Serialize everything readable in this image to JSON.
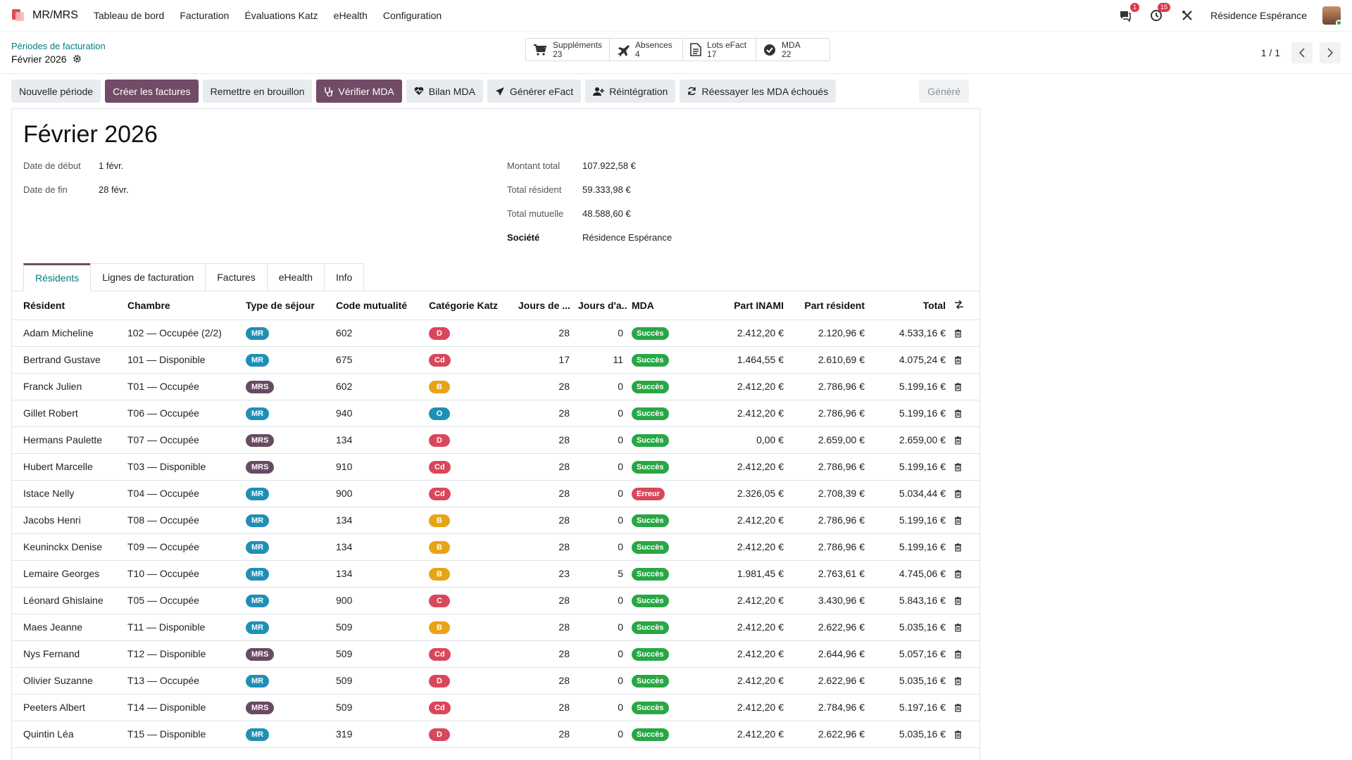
{
  "app": {
    "name": "MR/MRS"
  },
  "menu": [
    "Tableau de bord",
    "Facturation",
    "Évaluations Katz",
    "eHealth",
    "Configuration"
  ],
  "nav": {
    "messages_count": "1",
    "activities_count": "15",
    "company": "Résidence Espérance"
  },
  "breadcrumb": {
    "parent": "Périodes de facturation",
    "current": "Février 2026"
  },
  "stats": [
    {
      "label": "Suppléments",
      "value": "23",
      "icon": "cart-icon"
    },
    {
      "label": "Absences",
      "value": "4",
      "icon": "plane-icon"
    },
    {
      "label": "Lots eFact",
      "value": "17",
      "icon": "document-icon"
    },
    {
      "label": "MDA",
      "value": "22",
      "icon": "check-circle-icon"
    }
  ],
  "pager": {
    "value": "1 / 1"
  },
  "actions": {
    "new_period": "Nouvelle période",
    "create_invoices": "Créer les factures",
    "reset_draft": "Remettre en brouillon",
    "verify_mda": "Vérifier MDA",
    "mda_report": "Bilan MDA",
    "generate_efact": "Générer eFact",
    "reintegration": "Réintégration",
    "retry_mda": "Réessayer les MDA échoués",
    "status": "Généré"
  },
  "record": {
    "title": "Février 2026",
    "start_label": "Date de début",
    "start_value": "1 févr.",
    "end_label": "Date de fin",
    "end_value": "28 févr.",
    "total_label": "Montant total",
    "total_value": "107.922,58 €",
    "resident_label": "Total résident",
    "resident_value": "59.333,98 €",
    "mutual_label": "Total mutuelle",
    "mutual_value": "48.588,60 €",
    "company_label": "Société",
    "company_value": "Résidence Espérance"
  },
  "tabs": [
    "Résidents",
    "Lignes de facturation",
    "Factures",
    "eHealth",
    "Info"
  ],
  "columns": {
    "resident": "Résident",
    "room": "Chambre",
    "stay": "Type de séjour",
    "mutual": "Code mutualité",
    "katz": "Catégorie Katz",
    "days": "Jours de ...",
    "absence": "Jours d'a...",
    "mda": "MDA",
    "inami": "Part INAMI",
    "part_res": "Part résident",
    "total": "Total"
  },
  "colors": {
    "D": "#d9475b",
    "Cd": "#d9475b",
    "B": "#e8a317",
    "O": "#1f8fb5",
    "C": "#d9475b",
    "success": "#28a745",
    "error": "#d9475b",
    "accent": "#714b67",
    "link": "#017e84"
  },
  "rows": [
    {
      "name": "Adam Micheline",
      "room": "102 — Occupée (2/2)",
      "stay": "MR",
      "mutual": "602",
      "katz": "D",
      "days": "28",
      "abs": "0",
      "mda": "Succès",
      "mda_ok": true,
      "inami": "2.412,20 €",
      "res": "2.120,96 €",
      "total": "4.533,16 €"
    },
    {
      "name": "Bertrand Gustave",
      "room": "101 — Disponible",
      "stay": "MR",
      "mutual": "675",
      "katz": "Cd",
      "days": "17",
      "abs": "11",
      "mda": "Succès",
      "mda_ok": true,
      "inami": "1.464,55 €",
      "res": "2.610,69 €",
      "total": "4.075,24 €"
    },
    {
      "name": "Franck Julien",
      "room": "T01 — Occupée",
      "stay": "MRS",
      "mutual": "602",
      "katz": "B",
      "days": "28",
      "abs": "0",
      "mda": "Succès",
      "mda_ok": true,
      "inami": "2.412,20 €",
      "res": "2.786,96 €",
      "total": "5.199,16 €"
    },
    {
      "name": "Gillet Robert",
      "room": "T06 — Occupée",
      "stay": "MR",
      "mutual": "940",
      "katz": "O",
      "days": "28",
      "abs": "0",
      "mda": "Succès",
      "mda_ok": true,
      "inami": "2.412,20 €",
      "res": "2.786,96 €",
      "total": "5.199,16 €"
    },
    {
      "name": "Hermans Paulette",
      "room": "T07 — Occupée",
      "stay": "MRS",
      "mutual": "134",
      "katz": "D",
      "days": "28",
      "abs": "0",
      "mda": "Succès",
      "mda_ok": true,
      "inami": "0,00 €",
      "res": "2.659,00 €",
      "total": "2.659,00 €"
    },
    {
      "name": "Hubert Marcelle",
      "room": "T03 — Disponible",
      "stay": "MRS",
      "mutual": "910",
      "katz": "Cd",
      "days": "28",
      "abs": "0",
      "mda": "Succès",
      "mda_ok": true,
      "inami": "2.412,20 €",
      "res": "2.786,96 €",
      "total": "5.199,16 €"
    },
    {
      "name": "Istace Nelly",
      "room": "T04 — Occupée",
      "stay": "MR",
      "mutual": "900",
      "katz": "Cd",
      "days": "28",
      "abs": "0",
      "mda": "Erreur",
      "mda_ok": false,
      "inami": "2.326,05 €",
      "res": "2.708,39 €",
      "total": "5.034,44 €"
    },
    {
      "name": "Jacobs Henri",
      "room": "T08 — Occupée",
      "stay": "MR",
      "mutual": "134",
      "katz": "B",
      "days": "28",
      "abs": "0",
      "mda": "Succès",
      "mda_ok": true,
      "inami": "2.412,20 €",
      "res": "2.786,96 €",
      "total": "5.199,16 €"
    },
    {
      "name": "Keuninckx Denise",
      "room": "T09 — Occupée",
      "stay": "MR",
      "mutual": "134",
      "katz": "B",
      "days": "28",
      "abs": "0",
      "mda": "Succès",
      "mda_ok": true,
      "inami": "2.412,20 €",
      "res": "2.786,96 €",
      "total": "5.199,16 €"
    },
    {
      "name": "Lemaire Georges",
      "room": "T10 — Occupée",
      "stay": "MR",
      "mutual": "134",
      "katz": "B",
      "days": "23",
      "abs": "5",
      "mda": "Succès",
      "mda_ok": true,
      "inami": "1.981,45 €",
      "res": "2.763,61 €",
      "total": "4.745,06 €"
    },
    {
      "name": "Léonard Ghislaine",
      "room": "T05 — Occupée",
      "stay": "MR",
      "mutual": "900",
      "katz": "C",
      "days": "28",
      "abs": "0",
      "mda": "Succès",
      "mda_ok": true,
      "inami": "2.412,20 €",
      "res": "3.430,96 €",
      "total": "5.843,16 €"
    },
    {
      "name": "Maes Jeanne",
      "room": "T11 — Disponible",
      "stay": "MR",
      "mutual": "509",
      "katz": "B",
      "days": "28",
      "abs": "0",
      "mda": "Succès",
      "mda_ok": true,
      "inami": "2.412,20 €",
      "res": "2.622,96 €",
      "total": "5.035,16 €"
    },
    {
      "name": "Nys Fernand",
      "room": "T12 — Disponible",
      "stay": "MRS",
      "mutual": "509",
      "katz": "Cd",
      "days": "28",
      "abs": "0",
      "mda": "Succès",
      "mda_ok": true,
      "inami": "2.412,20 €",
      "res": "2.644,96 €",
      "total": "5.057,16 €"
    },
    {
      "name": "Olivier Suzanne",
      "room": "T13 — Occupée",
      "stay": "MR",
      "mutual": "509",
      "katz": "D",
      "days": "28",
      "abs": "0",
      "mda": "Succès",
      "mda_ok": true,
      "inami": "2.412,20 €",
      "res": "2.622,96 €",
      "total": "5.035,16 €"
    },
    {
      "name": "Peeters Albert",
      "room": "T14 — Disponible",
      "stay": "MRS",
      "mutual": "509",
      "katz": "Cd",
      "days": "28",
      "abs": "0",
      "mda": "Succès",
      "mda_ok": true,
      "inami": "2.412,20 €",
      "res": "2.784,96 €",
      "total": "5.197,16 €"
    },
    {
      "name": "Quintin Léa",
      "room": "T15 — Disponible",
      "stay": "MR",
      "mutual": "319",
      "katz": "D",
      "days": "28",
      "abs": "0",
      "mda": "Succès",
      "mda_ok": true,
      "inami": "2.412,20 €",
      "res": "2.622,96 €",
      "total": "5.035,16 €"
    }
  ]
}
